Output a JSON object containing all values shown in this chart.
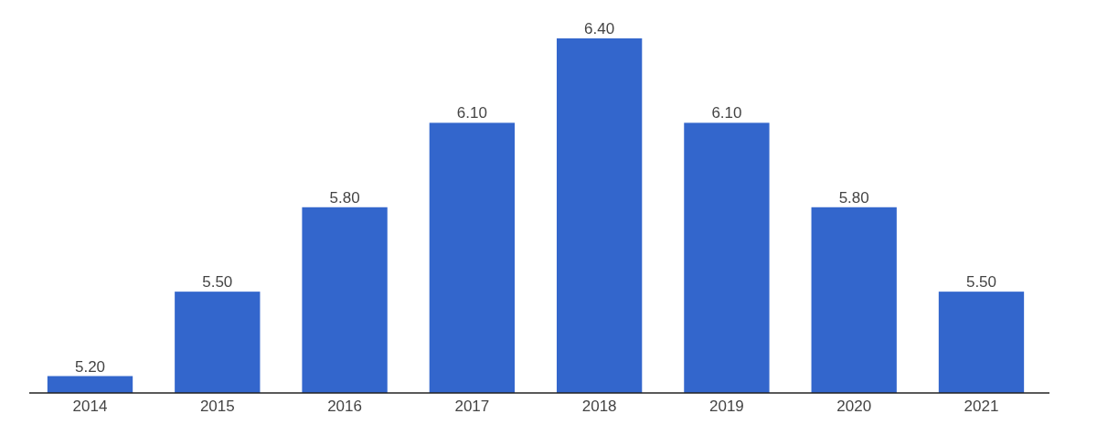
{
  "chart_data": {
    "type": "bar",
    "categories": [
      "2014",
      "2015",
      "2016",
      "2017",
      "2018",
      "2019",
      "2020",
      "2021"
    ],
    "values": [
      5.2,
      5.5,
      5.8,
      6.1,
      6.4,
      6.1,
      5.8,
      5.5
    ],
    "value_labels": [
      "5.20",
      "5.50",
      "5.80",
      "6.10",
      "6.40",
      "6.10",
      "5.80",
      "5.50"
    ],
    "color": "#3366cc",
    "ylim": [
      5.14,
      6.4
    ],
    "tick_labels": "x"
  }
}
